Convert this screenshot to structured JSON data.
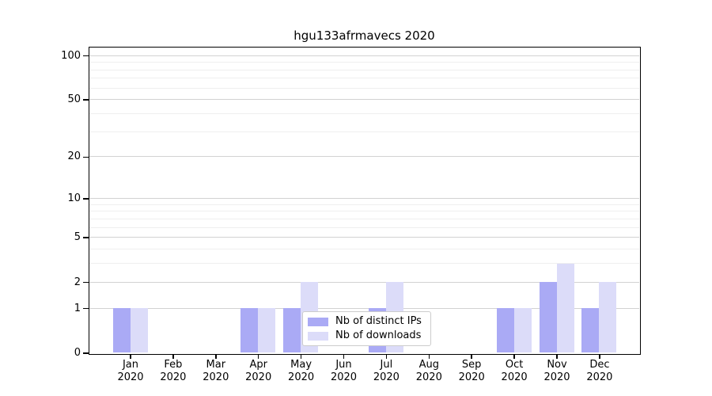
{
  "chart_data": {
    "type": "bar",
    "title": "hgu133afrmavecs 2020",
    "categories": [
      "Jan 2020",
      "Feb 2020",
      "Mar 2020",
      "Apr 2020",
      "May 2020",
      "Jun 2020",
      "Jul 2020",
      "Aug 2020",
      "Sep 2020",
      "Oct 2020",
      "Nov 2020",
      "Dec 2020"
    ],
    "series": [
      {
        "name": "Nb of distinct IPs",
        "color": "#aaaaf5",
        "values": [
          1,
          0,
          0,
          1,
          1,
          0,
          1,
          0,
          0,
          1,
          2,
          1
        ]
      },
      {
        "name": "Nb of downloads",
        "color": "#dcdcf9",
        "values": [
          1,
          0,
          0,
          1,
          2,
          0,
          2,
          0,
          0,
          1,
          3,
          2
        ]
      }
    ],
    "y_axis": {
      "scale": "log1p",
      "ticks": [
        0,
        1,
        2,
        5,
        10,
        20,
        50,
        100
      ],
      "minor_ticks": [
        3,
        4,
        6,
        7,
        8,
        9,
        30,
        40,
        60,
        70,
        80,
        90
      ],
      "max": 114
    },
    "xlabel": "",
    "ylabel": "",
    "grid": "horizontal",
    "legend_position": "bottom-center",
    "colors": {
      "grid_major": "#d2d2d2",
      "grid_minor": "#efefef",
      "axis_frame": "#000000"
    }
  }
}
